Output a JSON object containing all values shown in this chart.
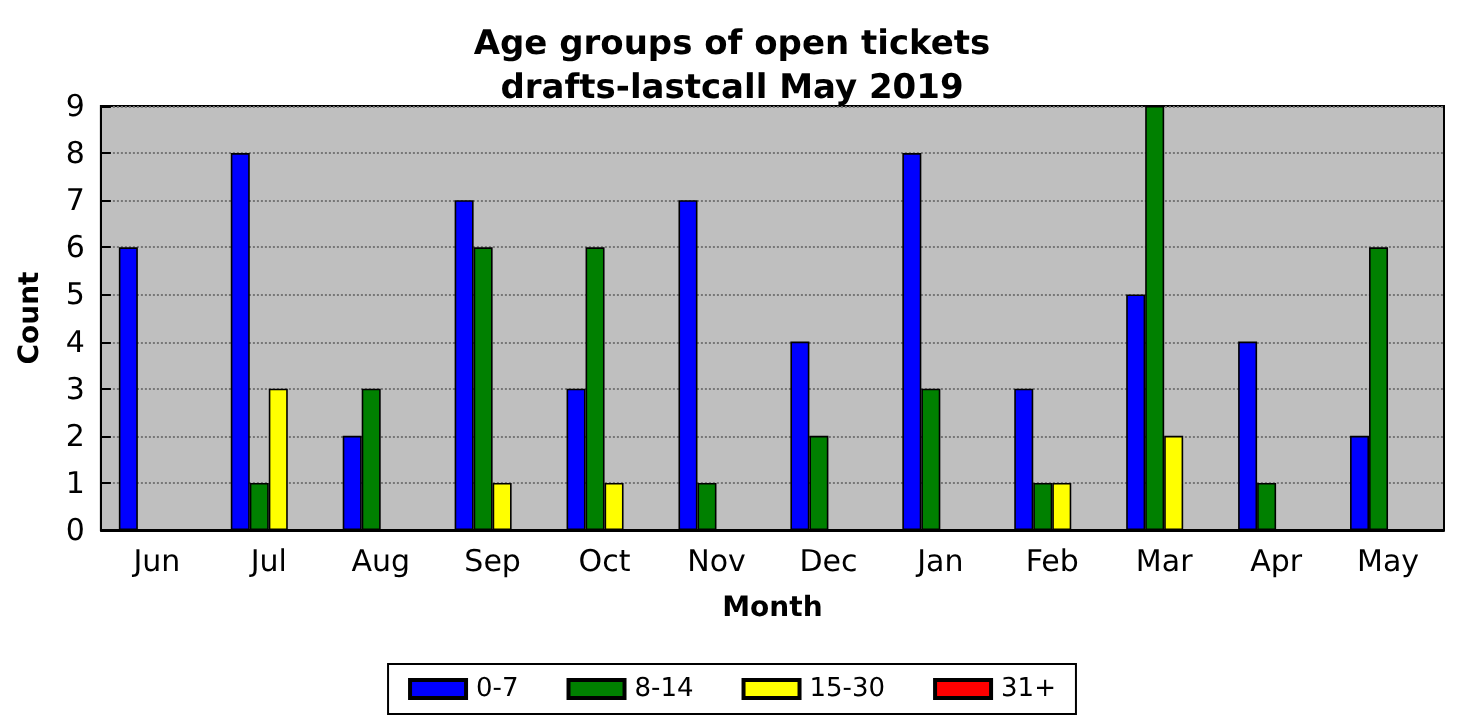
{
  "chart_data": {
    "type": "bar",
    "title": "Age groups of open tickets\ndrafts-lastcall May 2019",
    "xlabel": "Month",
    "ylabel": "Count",
    "categories": [
      "Jun",
      "Jul",
      "Aug",
      "Sep",
      "Oct",
      "Nov",
      "Dec",
      "Jan",
      "Feb",
      "Mar",
      "Apr",
      "May"
    ],
    "series": [
      {
        "name": "0-7",
        "color": "#0000ff",
        "values": [
          6,
          8,
          2,
          7,
          3,
          7,
          4,
          8,
          3,
          5,
          4,
          2
        ]
      },
      {
        "name": "8-14",
        "color": "#008000",
        "values": [
          0,
          1,
          3,
          6,
          6,
          1,
          2,
          3,
          1,
          9,
          1,
          6
        ]
      },
      {
        "name": "15-30",
        "color": "#ffff00",
        "values": [
          0,
          3,
          0,
          1,
          1,
          0,
          0,
          0,
          1,
          2,
          0,
          0
        ]
      },
      {
        "name": "31+",
        "color": "#ff0000",
        "values": [
          0,
          0,
          0,
          0,
          0,
          0,
          0,
          0,
          0,
          0,
          0,
          0
        ]
      }
    ],
    "ylim": [
      0,
      9
    ],
    "yticks": [
      0,
      1,
      2,
      3,
      4,
      5,
      6,
      7,
      8,
      9
    ],
    "grid": "y",
    "legend": "bottom"
  }
}
